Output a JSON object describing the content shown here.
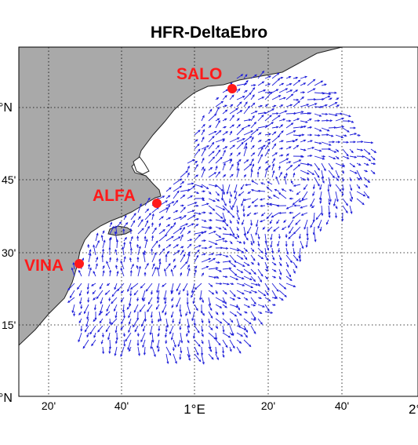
{
  "title": "HFR-DeltaEbro",
  "colors": {
    "land": "#a9a9a9",
    "sea": "#ffffff",
    "vectors": "#1f1fd9",
    "stations": "#ff1a1a",
    "grid": "#000000"
  },
  "map_data": {
    "type": "current-vector-map",
    "grid": "dotted",
    "x_tick_labels": [
      "20'",
      "40'",
      "1°E",
      "20'",
      "40'",
      "2°"
    ],
    "y_tick_labels": [
      "°N",
      "45'",
      "30'",
      "15'",
      "°N"
    ],
    "stations": [
      {
        "name": "SALO"
      },
      {
        "name": "ALFA"
      },
      {
        "name": "VINA"
      }
    ]
  }
}
